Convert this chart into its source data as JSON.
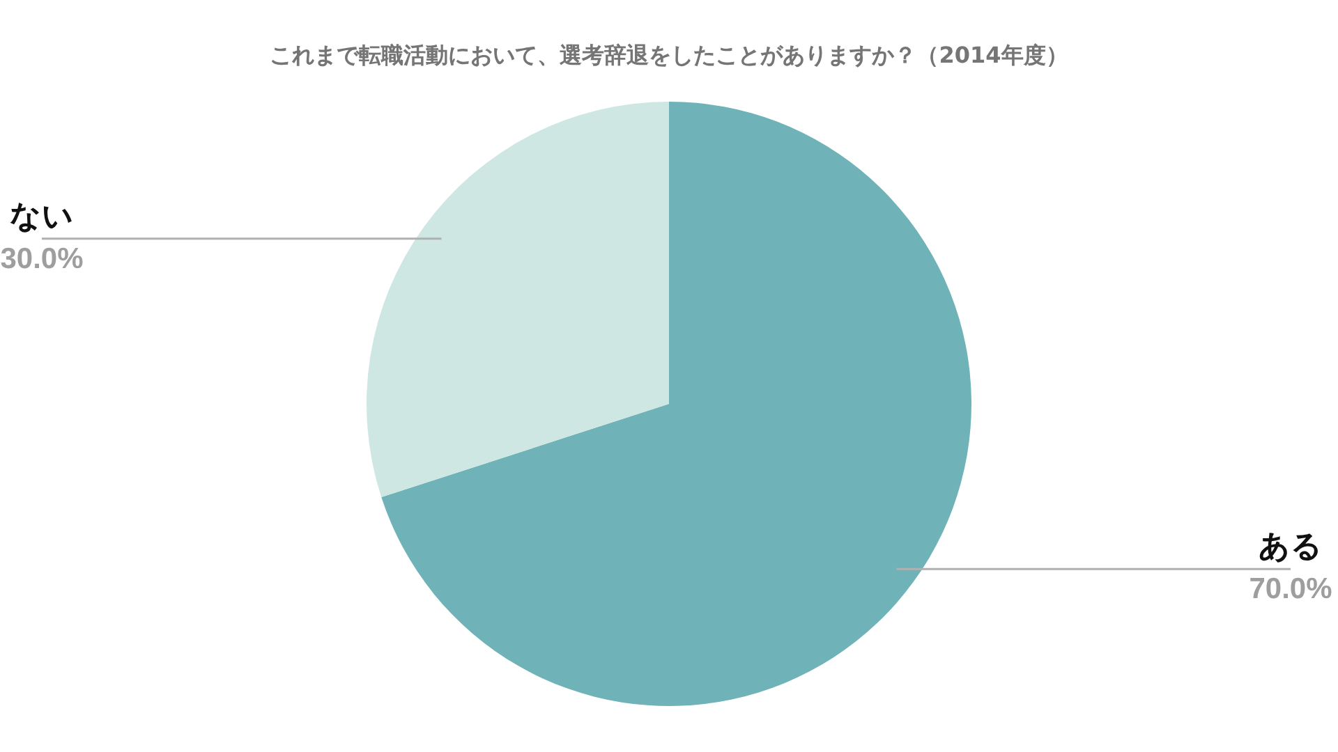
{
  "chart_data": {
    "type": "pie",
    "title": "これまで転職活動において、選考辞退をしたことがありますか？（2014年度）",
    "categories": [
      "ある",
      "ない"
    ],
    "values": [
      70,
      30
    ],
    "colors": [
      "#6fb3b8",
      "#cfe7e2"
    ],
    "value_labels": [
      "70.0%",
      "30.0%"
    ]
  }
}
